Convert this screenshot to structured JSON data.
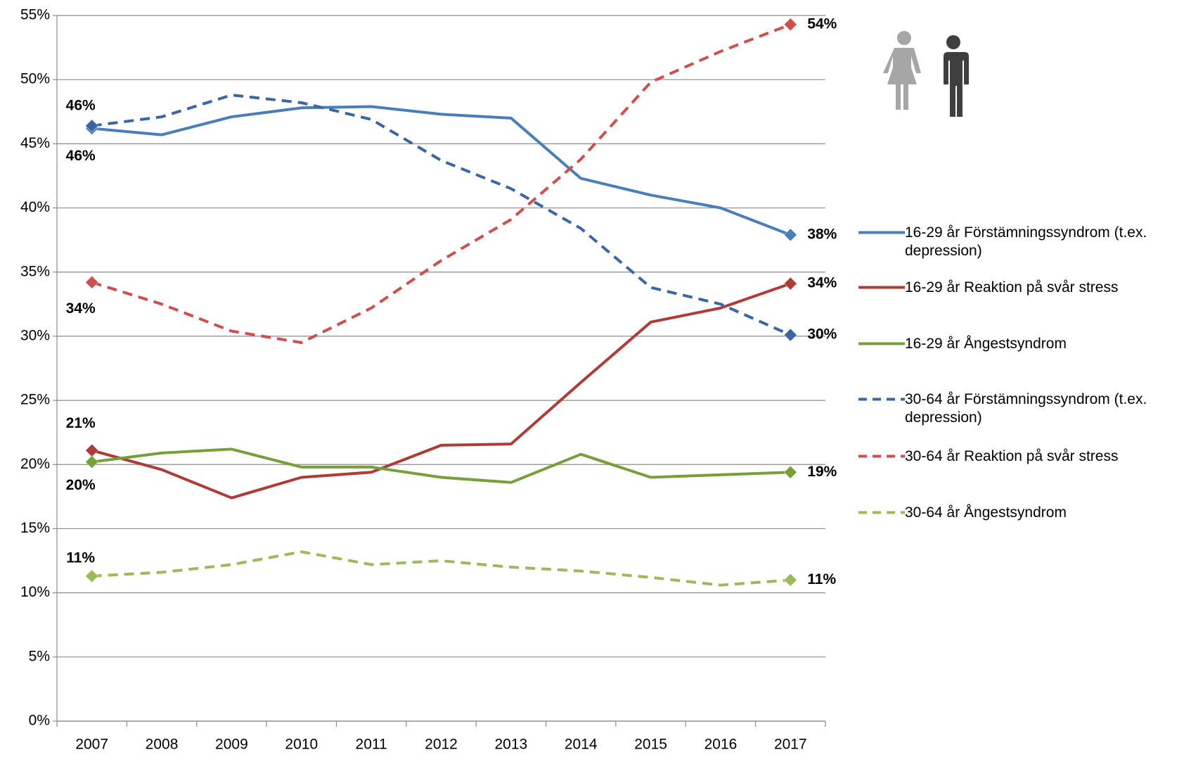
{
  "chart_data": {
    "type": "line",
    "categories": [
      "2007",
      "2008",
      "2009",
      "2010",
      "2011",
      "2012",
      "2013",
      "2014",
      "2015",
      "2016",
      "2017"
    ],
    "ylim": [
      0,
      55
    ],
    "yticks": [
      {
        "value": 0,
        "label": "0%"
      },
      {
        "value": 5,
        "label": "5%"
      },
      {
        "value": 10,
        "label": "10%"
      },
      {
        "value": 15,
        "label": "15%"
      },
      {
        "value": 20,
        "label": "20%"
      },
      {
        "value": 25,
        "label": "25%"
      },
      {
        "value": 30,
        "label": "30%"
      },
      {
        "value": 35,
        "label": "35%"
      },
      {
        "value": 40,
        "label": "40%"
      },
      {
        "value": 45,
        "label": "45%"
      },
      {
        "value": 50,
        "label": "50%"
      },
      {
        "value": 55,
        "label": "55%"
      }
    ],
    "grid": true,
    "legend": "right",
    "series": [
      {
        "name": "16-29 år Förstämningssyndrom (t.ex. depression)",
        "color": "#4a7ebb",
        "line_style": "solid",
        "values": [
          46.2,
          45.7,
          47.1,
          47.8,
          47.9,
          47.3,
          47.0,
          42.3,
          41.0,
          40.0,
          37.9
        ],
        "value_labels": [
          "46%",
          null,
          null,
          null,
          null,
          null,
          null,
          null,
          null,
          null,
          "38%"
        ]
      },
      {
        "name": "16-29 år Reaktion på svår stress",
        "color": "#b03a36",
        "line_style": "solid",
        "values": [
          21.1,
          19.6,
          17.4,
          19.0,
          19.4,
          21.5,
          21.6,
          26.4,
          31.1,
          32.2,
          34.1
        ],
        "value_labels": [
          "21%",
          null,
          null,
          null,
          null,
          null,
          null,
          null,
          null,
          null,
          "34%"
        ]
      },
      {
        "name": "16-29 år Ångestsyndrom",
        "color": "#77a03a",
        "line_style": "solid",
        "values": [
          20.2,
          20.9,
          21.2,
          19.8,
          19.8,
          19.0,
          18.6,
          20.8,
          19.0,
          19.2,
          19.4
        ],
        "value_labels": [
          "20%",
          null,
          null,
          null,
          null,
          null,
          null,
          null,
          null,
          null,
          "19%"
        ]
      },
      {
        "name": "30-64 år Förstämningssyndrom (t.ex. depression)",
        "color": "#3a66a3",
        "line_style": "dashed",
        "values": [
          46.4,
          47.1,
          48.8,
          48.2,
          46.9,
          43.7,
          41.5,
          38.4,
          33.8,
          32.5,
          30.1
        ],
        "value_labels": [
          "46%",
          null,
          null,
          null,
          null,
          null,
          null,
          null,
          null,
          null,
          "30%"
        ]
      },
      {
        "name": "30-64 år Reaktion på svår stress",
        "color": "#d04f4c",
        "line_style": "dashed",
        "values": [
          34.2,
          32.5,
          30.4,
          29.5,
          32.2,
          35.9,
          39.1,
          43.8,
          49.8,
          52.2,
          54.3
        ],
        "value_labels": [
          "34%",
          null,
          null,
          null,
          null,
          null,
          null,
          null,
          null,
          null,
          "54%"
        ]
      },
      {
        "name": "30-64 år Ångestsyndrom",
        "color": "#9bbb59",
        "line_style": "dashed",
        "values": [
          11.3,
          11.6,
          12.2,
          13.2,
          12.2,
          12.5,
          12.0,
          11.7,
          11.2,
          10.6,
          11.0
        ],
        "value_labels": [
          "11%",
          null,
          null,
          null,
          null,
          null,
          null,
          null,
          null,
          null,
          "11%"
        ]
      }
    ]
  }
}
